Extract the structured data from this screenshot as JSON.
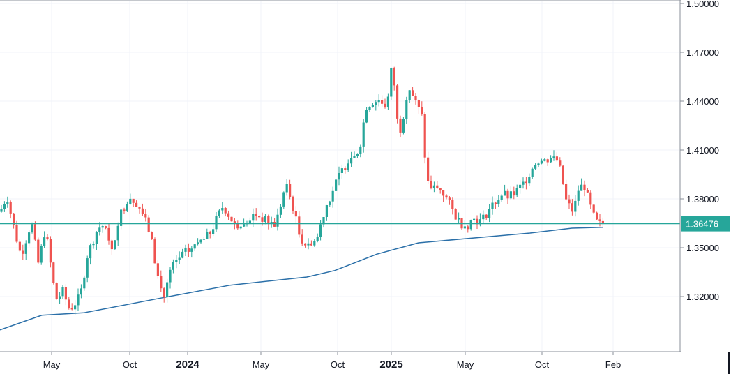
{
  "chart_data": {
    "type": "candlestick",
    "y_axis": {
      "ylim": [
        1.29,
        1.5
      ],
      "ticks": [
        "1.32000",
        "1.35000",
        "1.38000",
        "1.41000",
        "1.44000",
        "1.47000",
        "1.50000"
      ]
    },
    "x_axis": {
      "labels": [
        {
          "text": "May",
          "major": false
        },
        {
          "text": "Oct",
          "major": false
        },
        {
          "text": "2024",
          "major": true
        },
        {
          "text": "May",
          "major": false
        },
        {
          "text": "Oct",
          "major": false
        },
        {
          "text": "2025",
          "major": true
        },
        {
          "text": "May",
          "major": false
        },
        {
          "text": "Oct",
          "major": false
        },
        {
          "text": "Feb",
          "major": false
        }
      ]
    },
    "current_price": {
      "value": 1.36476,
      "label": "1.36476"
    },
    "colors": {
      "up": "#26a69a",
      "down": "#ef5350",
      "moving_average": "#2a6fa8",
      "price_line": "#26a69a",
      "grid": "#f0f3fa",
      "axis": "#8a8f99"
    },
    "grid": true,
    "moving_average_control_points": [
      [
        0,
        1.2995
      ],
      [
        60,
        1.3085
      ],
      [
        120,
        1.31
      ],
      [
        230,
        1.319
      ],
      [
        330,
        1.327
      ],
      [
        440,
        1.332
      ],
      [
        480,
        1.336
      ],
      [
        540,
        1.346
      ],
      [
        600,
        1.353
      ],
      [
        680,
        1.356
      ],
      [
        760,
        1.359
      ],
      [
        820,
        1.362
      ],
      [
        865,
        1.3625
      ]
    ],
    "price_anchors": [
      [
        0,
        1.372
      ],
      [
        10,
        1.382
      ],
      [
        20,
        1.362
      ],
      [
        30,
        1.345
      ],
      [
        45,
        1.366
      ],
      [
        55,
        1.34
      ],
      [
        65,
        1.362
      ],
      [
        80,
        1.318
      ],
      [
        90,
        1.323
      ],
      [
        100,
        1.312
      ],
      [
        115,
        1.32
      ],
      [
        125,
        1.345
      ],
      [
        140,
        1.362
      ],
      [
        150,
        1.364
      ],
      [
        160,
        1.346
      ],
      [
        170,
        1.368
      ],
      [
        185,
        1.382
      ],
      [
        200,
        1.376
      ],
      [
        215,
        1.359
      ],
      [
        228,
        1.328
      ],
      [
        235,
        1.32
      ],
      [
        245,
        1.337
      ],
      [
        260,
        1.345
      ],
      [
        280,
        1.351
      ],
      [
        300,
        1.358
      ],
      [
        320,
        1.376
      ],
      [
        335,
        1.365
      ],
      [
        350,
        1.363
      ],
      [
        365,
        1.371
      ],
      [
        380,
        1.367
      ],
      [
        395,
        1.364
      ],
      [
        410,
        1.389
      ],
      [
        420,
        1.375
      ],
      [
        430,
        1.356
      ],
      [
        445,
        1.352
      ],
      [
        455,
        1.356
      ],
      [
        465,
        1.373
      ],
      [
        475,
        1.383
      ],
      [
        485,
        1.393
      ],
      [
        500,
        1.405
      ],
      [
        515,
        1.41
      ],
      [
        525,
        1.437
      ],
      [
        535,
        1.44
      ],
      [
        545,
        1.44
      ],
      [
        555,
        1.437
      ],
      [
        563,
        1.466
      ],
      [
        568,
        1.43
      ],
      [
        575,
        1.422
      ],
      [
        585,
        1.45
      ],
      [
        595,
        1.44
      ],
      [
        605,
        1.43
      ],
      [
        612,
        1.391
      ],
      [
        620,
        1.386
      ],
      [
        630,
        1.388
      ],
      [
        640,
        1.38
      ],
      [
        650,
        1.372
      ],
      [
        660,
        1.365
      ],
      [
        670,
        1.364
      ],
      [
        680,
        1.368
      ],
      [
        690,
        1.366
      ],
      [
        700,
        1.373
      ],
      [
        710,
        1.378
      ],
      [
        720,
        1.383
      ],
      [
        730,
        1.381
      ],
      [
        740,
        1.384
      ],
      [
        750,
        1.389
      ],
      [
        760,
        1.397
      ],
      [
        770,
        1.404
      ],
      [
        780,
        1.403
      ],
      [
        790,
        1.406
      ],
      [
        800,
        1.403
      ],
      [
        806,
        1.392
      ],
      [
        812,
        1.378
      ],
      [
        822,
        1.372
      ],
      [
        830,
        1.387
      ],
      [
        838,
        1.388
      ],
      [
        845,
        1.377
      ],
      [
        852,
        1.368
      ],
      [
        858,
        1.364
      ],
      [
        866,
        1.365
      ]
    ]
  }
}
